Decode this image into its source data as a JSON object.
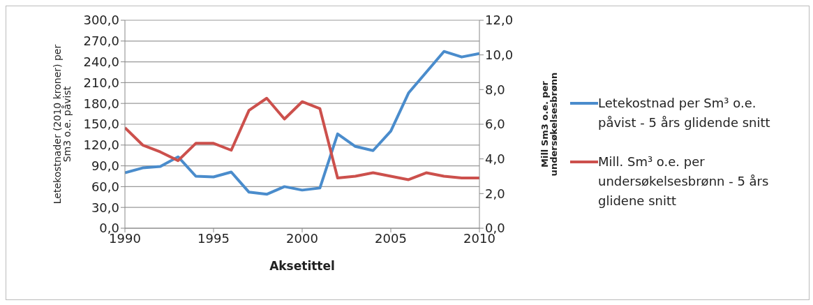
{
  "chart_data": {
    "type": "line",
    "xlabel": "Aksetittel",
    "ylabel": "Letekostnader (2010 kroner) per Sm3 o.e. påvist",
    "y2label": "Mill Sm3 o.e. per undersøkelsesbrønn",
    "x": [
      1990,
      1991,
      1992,
      1993,
      1994,
      1995,
      1996,
      1997,
      1998,
      1999,
      2000,
      2001,
      2002,
      2003,
      2004,
      2005,
      2006,
      2007,
      2008,
      2009,
      2010
    ],
    "series": [
      {
        "name": "Letekostnad per Sm³ o.e. påvist - 5 års glidende snitt",
        "color": "#4a8ccc",
        "values": [
          80,
          87,
          89,
          103,
          75,
          74,
          81,
          52,
          49,
          60,
          55,
          58,
          136,
          118,
          112,
          140,
          195,
          225,
          255,
          247,
          252
        ]
      },
      {
        "name": "Mill. Sm³ o.e. per undersøkelsesbrønn - 5 års glidene snitt",
        "color": "#cc504c",
        "axis": "y2",
        "values": [
          5.8,
          4.8,
          4.4,
          3.9,
          4.9,
          4.9,
          4.5,
          6.8,
          7.5,
          6.3,
          7.3,
          6.9,
          2.9,
          3.0,
          3.2,
          3.0,
          2.8,
          3.2,
          3.0,
          2.9,
          2.9
        ]
      }
    ],
    "xlim": [
      1990,
      2010
    ],
    "xticks": [
      1990,
      1995,
      2000,
      2005,
      2010
    ],
    "ylim": [
      0,
      300
    ],
    "yticks": [
      {
        "value": 0,
        "label": "0,0"
      },
      {
        "value": 30,
        "label": "30,0"
      },
      {
        "value": 60,
        "label": "60,0"
      },
      {
        "value": 90,
        "label": "90,0"
      },
      {
        "value": 120,
        "label": "120,0"
      },
      {
        "value": 150,
        "label": "150,0"
      },
      {
        "value": 180,
        "label": "180,0"
      },
      {
        "value": 210,
        "label": "210,0"
      },
      {
        "value": 240,
        "label": "240,0"
      },
      {
        "value": 270,
        "label": "270,0"
      },
      {
        "value": 300,
        "label": "300,0"
      }
    ],
    "y2lim": [
      0,
      12
    ],
    "y2ticks": [
      {
        "value": 0,
        "label": "0,0"
      },
      {
        "value": 2,
        "label": "2,0"
      },
      {
        "value": 4,
        "label": "4,0"
      },
      {
        "value": 6,
        "label": "6,0"
      },
      {
        "value": 8,
        "label": "8,0"
      },
      {
        "value": 10,
        "label": "10,0"
      },
      {
        "value": 12,
        "label": "12,0"
      }
    ],
    "grid": "y",
    "legend": "right",
    "marker": "none",
    "line_style": "solid"
  }
}
